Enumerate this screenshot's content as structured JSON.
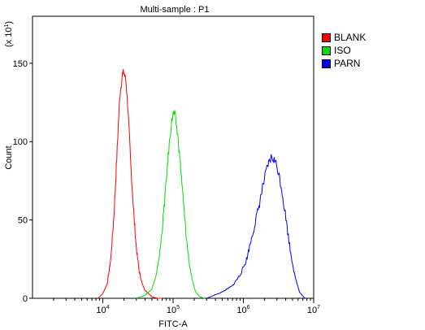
{
  "chart_data": {
    "type": "line",
    "title": "Multi-sample : P1",
    "xlabel": "FITC-A",
    "ylabel": "Count",
    "y_multiplier_label": "(x 10",
    "y_multiplier_exp": "1",
    "y_multiplier_close": ")",
    "x_scale": "log",
    "xlim": [
      1000,
      10000000
    ],
    "ylim": [
      0,
      180
    ],
    "x_ticks": [
      {
        "base": "10",
        "exp": "4",
        "value": 10000
      },
      {
        "base": "10",
        "exp": "5",
        "value": 100000
      },
      {
        "base": "10",
        "exp": "6",
        "value": 1000000
      },
      {
        "base": "10",
        "exp": "7",
        "value": 10000000
      }
    ],
    "y_ticks": [
      "0",
      "50",
      "100",
      "150"
    ],
    "y_tick_values": [
      0,
      50,
      100,
      150
    ],
    "legend_position": "right",
    "series": [
      {
        "name": "BLANK",
        "color": "#ff0000",
        "x": [
          8500,
          10000,
          11500,
          13000,
          14500,
          16000,
          17500,
          19000,
          20000,
          21500,
          23000,
          25000,
          27500,
          30000,
          33000,
          36500,
          40000,
          45000,
          50000,
          60000,
          70000
        ],
        "y": [
          0,
          3,
          9,
          25,
          55,
          95,
          130,
          143,
          144,
          138,
          118,
          85,
          55,
          32,
          17,
          9,
          5,
          3,
          1,
          0,
          0
        ]
      },
      {
        "name": "ISO",
        "color": "#00dd00",
        "x": [
          30000,
          40000,
          50000,
          58000,
          65000,
          72000,
          80000,
          88000,
          95000,
          100000,
          106000,
          112000,
          120000,
          130000,
          142000,
          155000,
          170000,
          190000,
          210000,
          240000,
          280000
        ],
        "y": [
          0,
          2,
          6,
          15,
          30,
          50,
          75,
          98,
          112,
          118,
          117,
          110,
          98,
          80,
          58,
          38,
          22,
          10,
          4,
          1,
          0
        ]
      },
      {
        "name": "PARN",
        "color": "#0000ee",
        "x": [
          300000,
          500000,
          700000,
          900000,
          1100000,
          1300000,
          1600000,
          1900000,
          2200000,
          2500000,
          2800000,
          3100000,
          3500000,
          4000000,
          4600000,
          5400000,
          6300000,
          7500000
        ],
        "y": [
          0,
          4,
          8,
          15,
          24,
          38,
          55,
          72,
          84,
          90,
          88,
          82,
          70,
          52,
          32,
          14,
          4,
          0
        ]
      }
    ]
  }
}
